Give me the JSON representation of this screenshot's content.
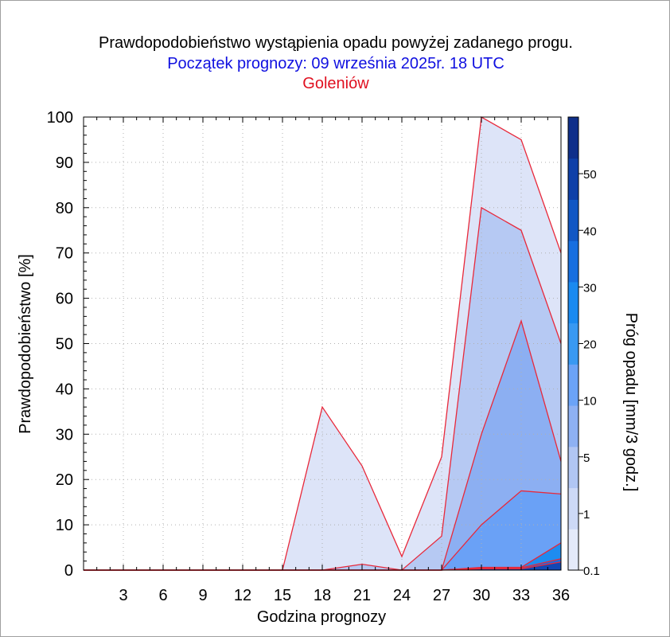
{
  "header": {
    "title": "Prawdopodobieństwo wystąpienia opadu powyżej zadanego progu.",
    "subtitle": "Początek prognozy: 09 września 2025r. 18 UTC",
    "station": "Goleniów"
  },
  "chart_data": {
    "type": "area",
    "title": "Prawdopodobieństwo wystąpienia opadu powyżej zadanego progu.",
    "subtitle": "Początek prognozy: 09 września 2025r. 18 UTC",
    "station": "Goleniów",
    "xlabel": "Godzina prognozy",
    "ylabel": "Prawdopodobieństwo [%]",
    "colorbar_label": "Próg opadu [mm/3 godz.]",
    "x": [
      0,
      3,
      6,
      9,
      12,
      15,
      18,
      21,
      24,
      27,
      30,
      33,
      36
    ],
    "x_ticks": [
      "3",
      "6",
      "9",
      "12",
      "15",
      "18",
      "21",
      "24",
      "27",
      "30",
      "33",
      "36"
    ],
    "y_ticks": [
      "0",
      "10",
      "20",
      "30",
      "40",
      "50",
      "60",
      "70",
      "80",
      "90",
      "100"
    ],
    "xlim": [
      0,
      36
    ],
    "ylim": [
      0,
      100
    ],
    "grid": true,
    "series": [
      {
        "name": "0.1",
        "color": "#dde4f8",
        "values": [
          0,
          0,
          0,
          0,
          0,
          0,
          36,
          23,
          3,
          25,
          100,
          95,
          70
        ]
      },
      {
        "name": "1",
        "color": "#b6c9f3",
        "values": [
          0,
          0,
          0,
          0,
          0,
          0,
          0,
          1.3,
          0,
          7.5,
          80,
          75,
          50
        ]
      },
      {
        "name": "5",
        "color": "#8caff2",
        "values": [
          0,
          0,
          0,
          0,
          0,
          0,
          0,
          0,
          0,
          0,
          30,
          55,
          24
        ]
      },
      {
        "name": "10",
        "color": "#6aa1f6",
        "values": [
          0,
          0,
          0,
          0,
          0,
          0,
          0,
          0,
          0,
          0,
          10,
          17.5,
          16.8
        ]
      },
      {
        "name": "20",
        "color": "#1e8cf0",
        "values": [
          0,
          0,
          0,
          0,
          0,
          0,
          0,
          0,
          0,
          0,
          0.6,
          0.6,
          6
        ]
      },
      {
        "name": "30",
        "color": "#1a6ddf",
        "values": [
          0,
          0,
          0,
          0,
          0,
          0,
          0,
          0,
          0,
          0,
          0.5,
          0.5,
          2.5
        ]
      },
      {
        "name": "40",
        "color": "#1247b4",
        "values": [
          0,
          0,
          0,
          0,
          0,
          0,
          0,
          0,
          0,
          0,
          0.3,
          0.3,
          1.8
        ]
      }
    ],
    "colorbar": {
      "labels": [
        "0.1",
        "1",
        "5",
        "10",
        "20",
        "30",
        "40",
        "50"
      ],
      "colors": [
        "#e4eafa",
        "#cdd9f6",
        "#b1c6f3",
        "#8eb1f3",
        "#6ba3f7",
        "#3899f2",
        "#1a8af0",
        "#176fe0",
        "#1157c4",
        "#0f40a8",
        "#0f2f8a"
      ]
    },
    "line_color": "#e8283a"
  }
}
